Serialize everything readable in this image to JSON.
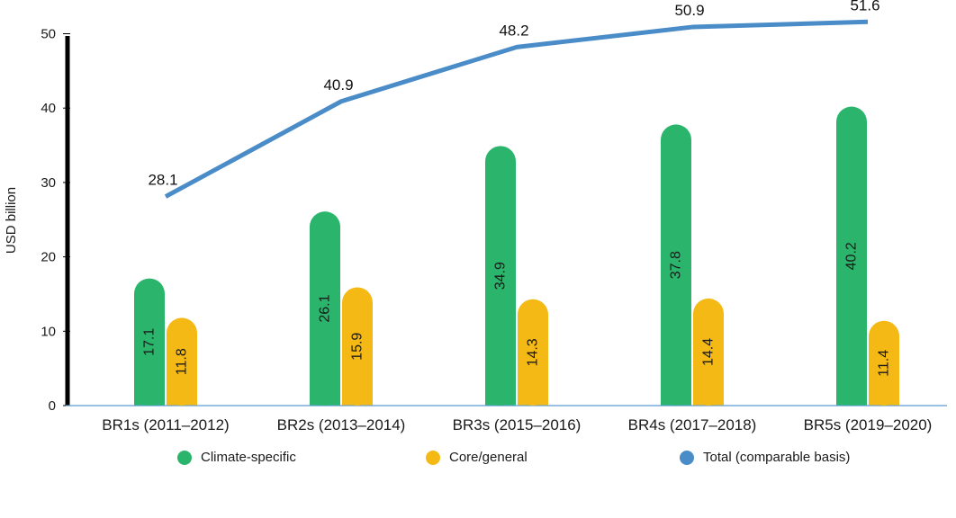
{
  "chart_data": {
    "type": "bar",
    "ylabel": "USD billion",
    "ylim": [
      0,
      52
    ],
    "yticks": [
      0,
      10,
      20,
      30,
      40,
      50
    ],
    "categories": [
      "BR1s (2011–2012)",
      "BR2s (2013–2014)",
      "BR3s (2015–2016)",
      "BR4s (2017–2018)",
      "BR5s (2019–2020)"
    ],
    "series": [
      {
        "name": "Climate-specific",
        "kind": "bar",
        "color": "#2bb56c",
        "values": [
          17.1,
          26.1,
          34.9,
          37.8,
          40.2
        ]
      },
      {
        "name": "Core/general",
        "kind": "bar",
        "color": "#f5b915",
        "values": [
          11.8,
          15.9,
          14.3,
          14.4,
          11.4
        ]
      },
      {
        "name": "Total (comparable basis)",
        "kind": "line",
        "color": "#4a8cc8",
        "values": [
          28.1,
          40.9,
          48.2,
          50.9,
          51.6
        ]
      }
    ],
    "legend": {
      "placement": "bottom",
      "items": [
        "Climate-specific",
        "Core/general",
        "Total (comparable basis)"
      ]
    }
  }
}
